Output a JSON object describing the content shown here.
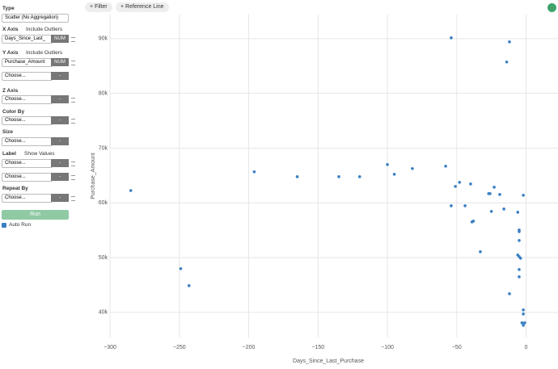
{
  "toolbar": {
    "filter": "Filter",
    "reference_line": "Reference Line"
  },
  "sidebar": {
    "type": {
      "label": "Type",
      "value": "Scatter (No Aggregation)"
    },
    "x_axis": {
      "label": "X Axis",
      "option": "Include Outliers",
      "column": "Days_Since_Last_",
      "column_type": "NUM"
    },
    "y_axis": {
      "label": "Y Axis",
      "option": "Include Outliers",
      "column": "Purchase_Amount",
      "column_type": "NUM",
      "extra": {
        "placeholder": "Choose...",
        "button": "-"
      }
    },
    "z_axis": {
      "label": "Z Axis",
      "placeholder": "Choose...",
      "button": "-"
    },
    "color_by": {
      "label": "Color By",
      "placeholder": "Choose...",
      "button": "-"
    },
    "size": {
      "label": "Size",
      "placeholder": "Choose...",
      "button": "-"
    },
    "label": {
      "label": "Label",
      "option": "Show Values",
      "selects": [
        {
          "placeholder": "Choose...",
          "button": "-"
        },
        {
          "placeholder": "Choose...",
          "button": "-"
        }
      ]
    },
    "repeat_by": {
      "label": "Repeat By",
      "placeholder": "Choose...",
      "button": "-"
    },
    "run": "Run",
    "auto_run": "Auto Run"
  },
  "chart_data": {
    "type": "scatter",
    "x_label": "Days_Since_Last_Purchase",
    "y_label": "Purchase_Amount",
    "color": "#3a7fc4",
    "grid": true,
    "xlim": [
      -300,
      23
    ],
    "ylim": [
      35400,
      94400
    ],
    "xticks": [
      {
        "value": -300,
        "label": "−300"
      },
      {
        "value": -250,
        "label": "−250"
      },
      {
        "value": -200,
        "label": "−200"
      },
      {
        "value": -150,
        "label": "−150"
      },
      {
        "value": -100,
        "label": "−100"
      },
      {
        "value": -50,
        "label": "−50"
      },
      0
    ],
    "yticks": [
      {
        "value": 40000,
        "label": "40k"
      },
      {
        "value": 50000,
        "label": "50k"
      },
      {
        "value": 60000,
        "label": "60k"
      },
      {
        "value": 70000,
        "label": "70k"
      },
      {
        "value": 80000,
        "label": "80k"
      },
      {
        "value": 90000,
        "label": "90k"
      }
    ],
    "x": [
      -285,
      -249,
      -243,
      -196,
      -165,
      -135,
      -120,
      -100,
      -95,
      -82,
      -58,
      -54,
      -54,
      -51,
      -48,
      -44,
      -40,
      -39,
      -38,
      -33,
      -27,
      -26,
      -25,
      -23,
      -19,
      -16,
      -14,
      -12,
      -12,
      -6,
      -5,
      -5,
      -5,
      -6,
      -5,
      -4,
      -5,
      -5,
      -2,
      -2,
      -2,
      -3,
      -2,
      -1
    ],
    "values": [
      62240,
      47970,
      44870,
      65670,
      64780,
      64780,
      64780,
      67000,
      65220,
      66260,
      66700,
      90150,
      59470,
      63000,
      63750,
      59470,
      63450,
      56520,
      56670,
      51060,
      61680,
      61680,
      58440,
      62860,
      61530,
      58880,
      85730,
      43390,
      89410,
      58290,
      54750,
      55040,
      53130,
      50470,
      50180,
      49880,
      47820,
      46490,
      61390,
      40440,
      39700,
      38080,
      37640,
      38080
    ]
  }
}
